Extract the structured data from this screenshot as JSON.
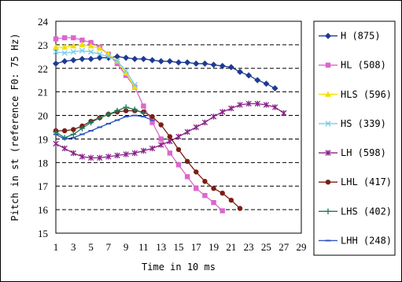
{
  "chart_data": {
    "type": "line",
    "title": "",
    "xlabel": "Time in 10 ms",
    "ylabel": "Pitch in st (reference F0: 75 Hz)",
    "xlim": [
      1,
      29
    ],
    "ylim": [
      15,
      24
    ],
    "x_ticks": [
      "1",
      "3",
      "5",
      "7",
      "9",
      "11",
      "13",
      "15",
      "17",
      "19",
      "21",
      "23",
      "25",
      "27",
      "29"
    ],
    "y_ticks": [
      "15",
      "16",
      "17",
      "18",
      "19",
      "20",
      "21",
      "22",
      "23",
      "24"
    ],
    "grid": "horizontal-dashed",
    "legend_position": "right",
    "series": [
      {
        "name": "H (875)",
        "color": "#1f3a93",
        "marker": "diamond",
        "x": [
          1,
          2,
          3,
          4,
          5,
          6,
          7,
          8,
          9,
          10,
          11,
          12,
          13,
          14,
          15,
          16,
          17,
          18,
          19,
          20,
          21,
          22,
          23,
          24,
          25,
          26
        ],
        "y": [
          22.2,
          22.3,
          22.35,
          22.4,
          22.4,
          22.45,
          22.45,
          22.5,
          22.45,
          22.4,
          22.4,
          22.35,
          22.3,
          22.3,
          22.25,
          22.25,
          22.2,
          22.2,
          22.15,
          22.1,
          22.05,
          21.85,
          21.7,
          21.5,
          21.35,
          21.15
        ]
      },
      {
        "name": "HL (508)",
        "color": "#dd66cc",
        "marker": "square",
        "x": [
          1,
          2,
          3,
          4,
          5,
          6,
          7,
          8,
          9,
          10,
          11,
          12,
          13,
          14,
          15,
          16,
          17,
          18,
          19,
          20
        ],
        "y": [
          23.25,
          23.3,
          23.3,
          23.2,
          23.1,
          22.9,
          22.6,
          22.2,
          21.7,
          21.2,
          20.4,
          19.7,
          19.0,
          18.4,
          17.9,
          17.4,
          16.9,
          16.6,
          16.3,
          15.95
        ]
      },
      {
        "name": "HLS (596)",
        "color": "#f0e000",
        "marker": "triangle",
        "x": [
          1,
          2,
          3,
          4,
          5,
          6,
          7,
          8,
          9,
          10
        ],
        "y": [
          22.9,
          22.9,
          22.95,
          23.0,
          22.95,
          22.85,
          22.6,
          22.3,
          21.8,
          21.2
        ]
      },
      {
        "name": "HS (339)",
        "color": "#77ccee",
        "marker": "x",
        "x": [
          1,
          2,
          3,
          4,
          5,
          6,
          7,
          8,
          9,
          10
        ],
        "y": [
          22.7,
          22.65,
          22.7,
          22.75,
          22.7,
          22.6,
          22.5,
          22.3,
          21.9,
          21.3
        ]
      },
      {
        "name": "LH (598)",
        "color": "#882288",
        "marker": "asterisk",
        "x": [
          1,
          2,
          3,
          4,
          5,
          6,
          7,
          8,
          9,
          10,
          11,
          12,
          13,
          14,
          15,
          16,
          17,
          18,
          19,
          20,
          21,
          22,
          23,
          24,
          25,
          26,
          27
        ],
        "y": [
          18.8,
          18.6,
          18.4,
          18.25,
          18.2,
          18.2,
          18.25,
          18.3,
          18.35,
          18.4,
          18.5,
          18.6,
          18.75,
          18.9,
          19.1,
          19.3,
          19.5,
          19.7,
          19.95,
          20.15,
          20.3,
          20.45,
          20.5,
          20.5,
          20.45,
          20.35,
          20.1
        ]
      },
      {
        "name": "LHL (417)",
        "color": "#7a1e14",
        "marker": "circle",
        "x": [
          1,
          2,
          3,
          4,
          5,
          6,
          7,
          8,
          9,
          10,
          11,
          12,
          13,
          14,
          15,
          16,
          17,
          18,
          19,
          20,
          21,
          22
        ],
        "y": [
          19.35,
          19.35,
          19.4,
          19.55,
          19.75,
          19.9,
          20.05,
          20.15,
          20.2,
          20.2,
          20.15,
          19.95,
          19.6,
          19.1,
          18.55,
          18.05,
          17.6,
          17.2,
          16.9,
          16.7,
          16.4,
          16.05
        ]
      },
      {
        "name": "LHS (402)",
        "color": "#1f7a5a",
        "marker": "plus",
        "x": [
          1,
          2,
          3,
          4,
          5,
          6,
          7,
          8,
          9,
          10,
          11
        ],
        "y": [
          19.3,
          19.05,
          19.2,
          19.45,
          19.7,
          19.9,
          20.05,
          20.2,
          20.35,
          20.25,
          20.1
        ]
      },
      {
        "name": "LHH (248)",
        "color": "#3355bb",
        "marker": "dash",
        "x": [
          1,
          2,
          3,
          4,
          5,
          6,
          7,
          8,
          9,
          10,
          11,
          12
        ],
        "y": [
          19.2,
          19.0,
          19.05,
          19.2,
          19.35,
          19.5,
          19.65,
          19.8,
          19.95,
          20.0,
          19.95,
          19.8
        ]
      }
    ]
  }
}
